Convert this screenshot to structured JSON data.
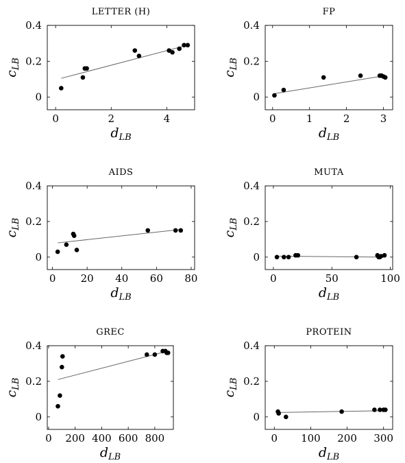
{
  "chart_data": [
    {
      "type": "scatter",
      "title": "LETTER (H)",
      "xlabel": {
        "var": "d",
        "sub": "LB"
      },
      "ylabel": {
        "var": "c",
        "sub": "LB"
      },
      "xlim": [
        -0.3,
        5.0
      ],
      "ylim": [
        -0.07,
        0.4
      ],
      "xticks": [
        0,
        2,
        4
      ],
      "yticks": [
        0,
        0.2,
        0.4
      ],
      "xtick_labels": [
        "0",
        "2",
        "4"
      ],
      "ytick_labels": [
        "0",
        "0.2",
        "0.4"
      ],
      "points": [
        [
          0.2,
          0.05
        ],
        [
          0.98,
          0.11
        ],
        [
          1.05,
          0.16
        ],
        [
          1.12,
          0.16
        ],
        [
          2.85,
          0.26
        ],
        [
          3.0,
          0.23
        ],
        [
          4.08,
          0.26
        ],
        [
          4.2,
          0.25
        ],
        [
          4.45,
          0.27
        ],
        [
          4.62,
          0.29
        ],
        [
          4.75,
          0.29
        ]
      ],
      "fit": [
        [
          0.2,
          0.105
        ],
        [
          4.75,
          0.29
        ]
      ],
      "grid": false
    },
    {
      "type": "scatter",
      "title": "FP",
      "xlabel": {
        "var": "d",
        "sub": "LB"
      },
      "ylabel": {
        "var": "c",
        "sub": "LB"
      },
      "xlim": [
        -0.2,
        3.25
      ],
      "ylim": [
        -0.07,
        0.4
      ],
      "xticks": [
        0,
        1,
        2,
        3
      ],
      "yticks": [
        0,
        0.2,
        0.4
      ],
      "xtick_labels": [
        "0",
        "1",
        "2",
        "3"
      ],
      "ytick_labels": [
        "0",
        "0.2",
        "0.4"
      ],
      "points": [
        [
          0.05,
          0.01
        ],
        [
          0.3,
          0.04
        ],
        [
          1.38,
          0.11
        ],
        [
          2.38,
          0.12
        ],
        [
          2.9,
          0.12
        ],
        [
          2.95,
          0.12
        ],
        [
          3.0,
          0.115
        ],
        [
          3.05,
          0.11
        ]
      ],
      "fit": [
        [
          0.05,
          0.02
        ],
        [
          3.05,
          0.12
        ]
      ],
      "grid": false
    },
    {
      "type": "scatter",
      "title": "AIDS",
      "xlabel": {
        "var": "d",
        "sub": "LB"
      },
      "ylabel": {
        "var": "c",
        "sub": "LB"
      },
      "xlim": [
        -3,
        82
      ],
      "ylim": [
        -0.07,
        0.4
      ],
      "xticks": [
        0,
        20,
        40,
        60,
        80
      ],
      "yticks": [
        0,
        0.2,
        0.4
      ],
      "xtick_labels": [
        "0",
        "20",
        "40",
        "60",
        "80"
      ],
      "ytick_labels": [
        "0",
        "0.2",
        "0.4"
      ],
      "points": [
        [
          3,
          0.03
        ],
        [
          8,
          0.07
        ],
        [
          12,
          0.13
        ],
        [
          12.5,
          0.12
        ],
        [
          14,
          0.04
        ],
        [
          55,
          0.15
        ],
        [
          71,
          0.15
        ],
        [
          74,
          0.15
        ]
      ],
      "fit": [
        [
          3,
          0.08
        ],
        [
          74,
          0.155
        ]
      ],
      "grid": false
    },
    {
      "type": "scatter",
      "title": "MUTA",
      "xlabel": {
        "var": "d",
        "sub": "LB"
      },
      "ylabel": {
        "var": "c",
        "sub": "LB"
      },
      "xlim": [
        -7,
        102
      ],
      "ylim": [
        -0.07,
        0.4
      ],
      "xticks": [
        0,
        50,
        100
      ],
      "yticks": [
        0,
        0.2,
        0.4
      ],
      "xtick_labels": [
        "0",
        "50",
        "100"
      ],
      "ytick_labels": [
        "0",
        "0.2",
        "0.4"
      ],
      "points": [
        [
          3,
          0.0
        ],
        [
          9,
          0.0
        ],
        [
          13,
          0.0
        ],
        [
          19,
          0.01
        ],
        [
          21,
          0.01
        ],
        [
          71,
          0.0
        ],
        [
          89,
          0.01
        ],
        [
          90,
          0.0
        ],
        [
          91,
          0.0
        ],
        [
          92,
          0.005
        ],
        [
          95,
          0.01
        ]
      ],
      "fit": [
        [
          3,
          0.005
        ],
        [
          95,
          0.0
        ]
      ],
      "grid": false
    },
    {
      "type": "scatter",
      "title": "GREC",
      "xlabel": {
        "var": "d",
        "sub": "LB"
      },
      "ylabel": {
        "var": "c",
        "sub": "LB"
      },
      "xlim": [
        -10,
        940
      ],
      "ylim": [
        -0.07,
        0.4
      ],
      "xticks": [
        0,
        200,
        400,
        600,
        800
      ],
      "yticks": [
        0,
        0.2,
        0.4
      ],
      "xtick_labels": [
        "0",
        "200",
        "400",
        "600",
        "800"
      ],
      "ytick_labels": [
        "0",
        "0.2",
        "0.4"
      ],
      "points": [
        [
          70,
          0.06
        ],
        [
          85,
          0.12
        ],
        [
          100,
          0.28
        ],
        [
          105,
          0.34
        ],
        [
          740,
          0.35
        ],
        [
          800,
          0.35
        ],
        [
          860,
          0.37
        ],
        [
          880,
          0.37
        ],
        [
          890,
          0.36
        ],
        [
          900,
          0.36
        ]
      ],
      "fit": [
        [
          70,
          0.21
        ],
        [
          900,
          0.37
        ]
      ],
      "grid": false
    },
    {
      "type": "scatter",
      "title": "PROTEIN",
      "xlabel": {
        "var": "d",
        "sub": "LB"
      },
      "ylabel": {
        "var": "c",
        "sub": "LB"
      },
      "xlim": [
        -25,
        325
      ],
      "ylim": [
        -0.07,
        0.4
      ],
      "xticks": [
        0,
        100,
        200,
        300
      ],
      "yticks": [
        0,
        0.2,
        0.4
      ],
      "xtick_labels": [
        "0",
        "100",
        "200",
        "300"
      ],
      "ytick_labels": [
        "0",
        "0.2",
        "0.4"
      ],
      "points": [
        [
          10,
          0.03
        ],
        [
          12,
          0.02
        ],
        [
          32,
          0.0
        ],
        [
          185,
          0.03
        ],
        [
          275,
          0.04
        ],
        [
          290,
          0.04
        ],
        [
          300,
          0.04
        ],
        [
          305,
          0.04
        ]
      ],
      "fit": [
        [
          10,
          0.025
        ],
        [
          305,
          0.035
        ]
      ],
      "grid": false
    }
  ],
  "colors": {
    "points": "#000000",
    "fit_line": "#666666",
    "axes": "#000000"
  }
}
